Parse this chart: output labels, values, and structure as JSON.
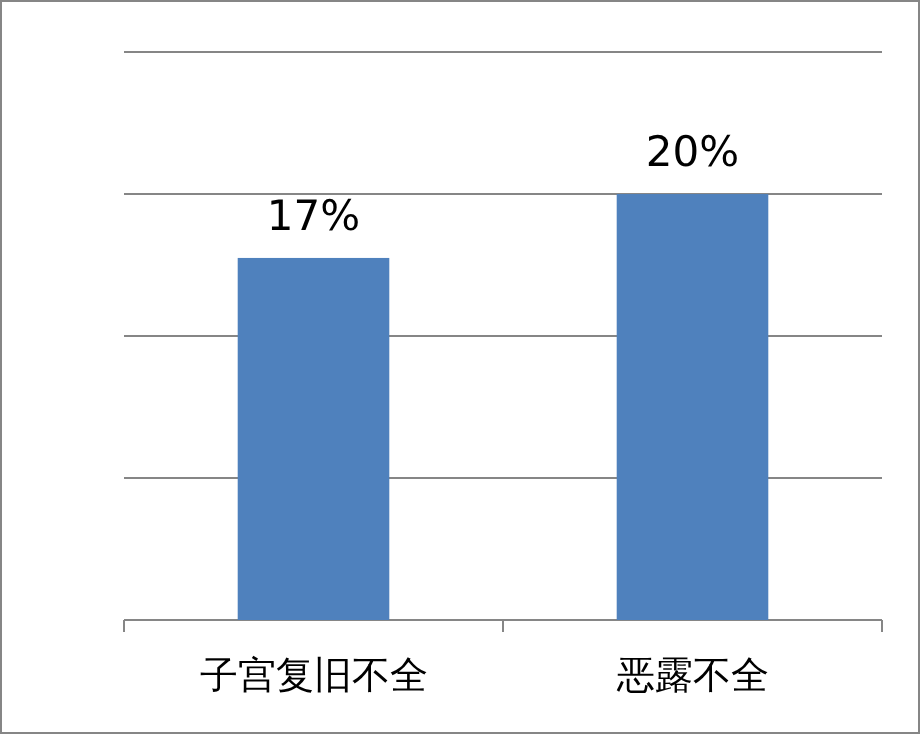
{
  "chart_data": {
    "type": "bar",
    "categories": [
      "子宫复旧不全",
      "恶露不全"
    ],
    "values": [
      17,
      20
    ],
    "color": "#4f81bd",
    "data_labels": true,
    "value_labels": [
      "17%",
      "20%"
    ],
    "ylim": [
      0,
      26.67
    ],
    "yticks": [
      {
        "value": 0,
        "label": null
      },
      {
        "value": 6.67,
        "label": null
      },
      {
        "value": 13.33,
        "label": null
      },
      {
        "value": 20,
        "label": null
      },
      {
        "value": 26.67,
        "label": null
      }
    ],
    "grid": "y",
    "tick_labels": "x"
  }
}
